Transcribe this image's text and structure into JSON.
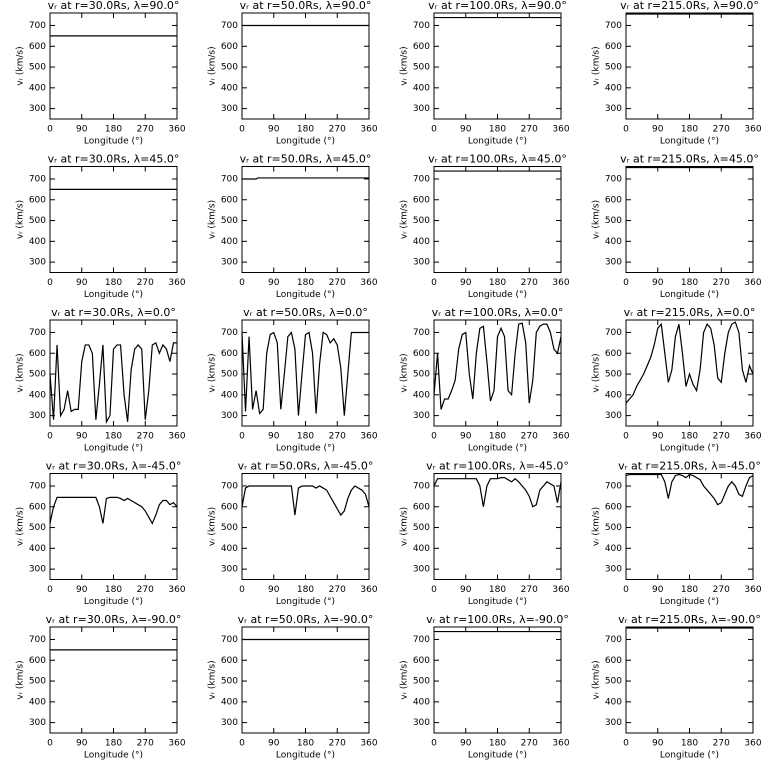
{
  "chart_data": [
    {
      "type": "line",
      "title": "vᵣ at r=30.0Rs, λ=90.0°",
      "x_label": "Longitude (°)",
      "y_label": "vᵣ (km/s)",
      "x": [
        0,
        360
      ],
      "values": [
        650,
        650
      ],
      "color": "#000000",
      "xlim": [
        0,
        360
      ],
      "xticks": [
        0,
        90,
        180,
        270,
        360
      ],
      "ylim": [
        250,
        760
      ],
      "yticks": [
        300,
        400,
        500,
        600,
        700
      ]
    },
    {
      "type": "line",
      "title": "vᵣ at r=50.0Rs, λ=90.0°",
      "x_label": "Longitude (°)",
      "y_label": "vᵣ (km/s)",
      "x": [
        0,
        360
      ],
      "values": [
        700,
        700
      ],
      "color": "#000000",
      "xlim": [
        0,
        360
      ],
      "xticks": [
        0,
        90,
        180,
        270,
        360
      ],
      "ylim": [
        250,
        760
      ],
      "yticks": [
        300,
        400,
        500,
        600,
        700
      ]
    },
    {
      "type": "line",
      "title": "vᵣ at r=100.0Rs, λ=90.0°",
      "x_label": "Longitude (°)",
      "y_label": "vᵣ (km/s)",
      "x": [
        0,
        360
      ],
      "values": [
        738,
        738
      ],
      "color": "#000000",
      "xlim": [
        0,
        360
      ],
      "xticks": [
        0,
        90,
        180,
        270,
        360
      ],
      "ylim": [
        250,
        760
      ],
      "yticks": [
        300,
        400,
        500,
        600,
        700
      ]
    },
    {
      "type": "line",
      "title": "vᵣ at r=215.0Rs, λ=90.0°",
      "x_label": "Longitude (°)",
      "y_label": "vᵣ (km/s)",
      "x": [
        0,
        360
      ],
      "values": [
        755,
        755
      ],
      "color": "#000000",
      "xlim": [
        0,
        360
      ],
      "xticks": [
        0,
        90,
        180,
        270,
        360
      ],
      "ylim": [
        250,
        760
      ],
      "yticks": [
        300,
        400,
        500,
        600,
        700
      ]
    },
    {
      "type": "line",
      "title": "vᵣ at r=30.0Rs, λ=45.0°",
      "x_label": "Longitude (°)",
      "y_label": "vᵣ (km/s)",
      "x": [
        0,
        360
      ],
      "values": [
        650,
        650
      ],
      "color": "#000000",
      "xlim": [
        0,
        360
      ],
      "xticks": [
        0,
        90,
        180,
        270,
        360
      ],
      "ylim": [
        250,
        760
      ],
      "yticks": [
        300,
        400,
        500,
        600,
        700
      ]
    },
    {
      "type": "line",
      "title": "vᵣ at r=50.0Rs, λ=45.0°",
      "x_label": "Longitude (°)",
      "y_label": "vᵣ (km/s)",
      "x": [
        0,
        40,
        45,
        360
      ],
      "values": [
        700,
        700,
        705,
        705
      ],
      "color": "#000000",
      "xlim": [
        0,
        360
      ],
      "xticks": [
        0,
        90,
        180,
        270,
        360
      ],
      "ylim": [
        250,
        760
      ],
      "yticks": [
        300,
        400,
        500,
        600,
        700
      ]
    },
    {
      "type": "line",
      "title": "vᵣ at r=100.0Rs, λ=45.0°",
      "x_label": "Longitude (°)",
      "y_label": "vᵣ (km/s)",
      "x": [
        0,
        360
      ],
      "values": [
        738,
        738
      ],
      "color": "#000000",
      "xlim": [
        0,
        360
      ],
      "xticks": [
        0,
        90,
        180,
        270,
        360
      ],
      "ylim": [
        250,
        760
      ],
      "yticks": [
        300,
        400,
        500,
        600,
        700
      ]
    },
    {
      "type": "line",
      "title": "vᵣ at r=215.0Rs, λ=45.0°",
      "x_label": "Longitude (°)",
      "y_label": "vᵣ (km/s)",
      "x": [
        0,
        360
      ],
      "values": [
        755,
        755
      ],
      "color": "#000000",
      "xlim": [
        0,
        360
      ],
      "xticks": [
        0,
        90,
        180,
        270,
        360
      ],
      "ylim": [
        250,
        760
      ],
      "yticks": [
        300,
        400,
        500,
        600,
        700
      ]
    },
    {
      "type": "line",
      "title": "vᵣ at r=30.0Rs, λ=0.0°",
      "x_label": "Longitude (°)",
      "y_label": "vᵣ (km/s)",
      "x": [
        0,
        10,
        20,
        30,
        40,
        50,
        60,
        70,
        80,
        90,
        100,
        110,
        120,
        130,
        140,
        150,
        160,
        170,
        180,
        190,
        200,
        210,
        220,
        230,
        240,
        250,
        260,
        270,
        280,
        290,
        300,
        310,
        320,
        330,
        340,
        350,
        360
      ],
      "values": [
        500,
        280,
        640,
        300,
        330,
        420,
        320,
        330,
        330,
        560,
        640,
        640,
        600,
        280,
        450,
        640,
        270,
        300,
        620,
        640,
        640,
        400,
        270,
        520,
        620,
        640,
        620,
        280,
        420,
        640,
        650,
        600,
        640,
        620,
        560,
        650,
        650
      ],
      "color": "#000000",
      "xlim": [
        0,
        360
      ],
      "xticks": [
        0,
        90,
        180,
        270,
        360
      ],
      "ylim": [
        250,
        760
      ],
      "yticks": [
        300,
        400,
        500,
        600,
        700
      ]
    },
    {
      "type": "line",
      "title": "vᵣ at r=50.0Rs, λ=0.0°",
      "x_label": "Longitude (°)",
      "y_label": "vᵣ (km/s)",
      "x": [
        0,
        10,
        20,
        30,
        40,
        50,
        60,
        70,
        80,
        90,
        100,
        110,
        120,
        130,
        140,
        150,
        160,
        170,
        180,
        190,
        200,
        210,
        220,
        230,
        240,
        250,
        260,
        270,
        280,
        290,
        300,
        310,
        320,
        330,
        340,
        350,
        360
      ],
      "values": [
        700,
        320,
        680,
        330,
        420,
        310,
        330,
        600,
        690,
        700,
        650,
        330,
        500,
        680,
        700,
        620,
        300,
        500,
        690,
        700,
        600,
        310,
        550,
        700,
        690,
        650,
        670,
        640,
        530,
        300,
        500,
        700,
        700,
        700,
        700,
        700,
        700
      ],
      "color": "#000000",
      "xlim": [
        0,
        360
      ],
      "xticks": [
        0,
        90,
        180,
        270,
        360
      ],
      "ylim": [
        250,
        760
      ],
      "yticks": [
        300,
        400,
        500,
        600,
        700
      ]
    },
    {
      "type": "line",
      "title": "vᵣ at r=100.0Rs, λ=0.0°",
      "x_label": "Longitude (°)",
      "y_label": "vᵣ (km/s)",
      "x": [
        0,
        10,
        20,
        30,
        40,
        50,
        60,
        70,
        80,
        90,
        100,
        110,
        120,
        130,
        140,
        150,
        160,
        170,
        180,
        190,
        200,
        210,
        220,
        230,
        240,
        250,
        260,
        270,
        280,
        290,
        300,
        310,
        320,
        330,
        340,
        350,
        360
      ],
      "values": [
        400,
        600,
        330,
        380,
        380,
        420,
        470,
        620,
        690,
        700,
        500,
        380,
        600,
        720,
        730,
        560,
        370,
        420,
        680,
        720,
        680,
        420,
        400,
        600,
        740,
        745,
        650,
        360,
        470,
        700,
        730,
        740,
        740,
        700,
        620,
        600,
        680
      ],
      "color": "#000000",
      "xlim": [
        0,
        360
      ],
      "xticks": [
        0,
        90,
        180,
        270,
        360
      ],
      "ylim": [
        250,
        760
      ],
      "yticks": [
        300,
        400,
        500,
        600,
        700
      ]
    },
    {
      "type": "line",
      "title": "vᵣ at r=215.0Rs, λ=0.0°",
      "x_label": "Longitude (°)",
      "y_label": "vᵣ (km/s)",
      "x": [
        0,
        10,
        20,
        30,
        40,
        50,
        60,
        70,
        80,
        90,
        100,
        110,
        120,
        130,
        140,
        150,
        160,
        170,
        180,
        190,
        200,
        210,
        220,
        230,
        240,
        250,
        260,
        270,
        280,
        290,
        300,
        310,
        320,
        330,
        340,
        350,
        360
      ],
      "values": [
        360,
        380,
        400,
        440,
        470,
        500,
        540,
        580,
        640,
        720,
        740,
        600,
        460,
        520,
        680,
        740,
        600,
        440,
        500,
        450,
        420,
        520,
        700,
        740,
        720,
        640,
        480,
        460,
        600,
        700,
        740,
        750,
        700,
        520,
        460,
        540,
        500
      ],
      "color": "#000000",
      "xlim": [
        0,
        360
      ],
      "xticks": [
        0,
        90,
        180,
        270,
        360
      ],
      "ylim": [
        250,
        760
      ],
      "yticks": [
        300,
        400,
        500,
        600,
        700
      ]
    },
    {
      "type": "line",
      "title": "vᵣ at r=30.0Rs, λ=-45.0°",
      "x_label": "Longitude (°)",
      "y_label": "vᵣ (km/s)",
      "x": [
        0,
        10,
        20,
        30,
        40,
        50,
        60,
        70,
        80,
        90,
        100,
        110,
        120,
        130,
        140,
        150,
        160,
        170,
        180,
        190,
        200,
        210,
        220,
        230,
        240,
        250,
        260,
        270,
        280,
        290,
        300,
        310,
        320,
        330,
        340,
        350,
        360
      ],
      "values": [
        520,
        600,
        645,
        645,
        645,
        645,
        645,
        645,
        645,
        645,
        645,
        645,
        645,
        645,
        600,
        520,
        640,
        645,
        645,
        645,
        640,
        630,
        640,
        630,
        620,
        610,
        600,
        580,
        550,
        520,
        560,
        610,
        630,
        630,
        610,
        620,
        600
      ],
      "color": "#000000",
      "xlim": [
        0,
        360
      ],
      "xticks": [
        0,
        90,
        180,
        270,
        360
      ],
      "ylim": [
        250,
        760
      ],
      "yticks": [
        300,
        400,
        500,
        600,
        700
      ]
    },
    {
      "type": "line",
      "title": "vᵣ at r=50.0Rs, λ=-45.0°",
      "x_label": "Longitude (°)",
      "y_label": "vᵣ (km/s)",
      "x": [
        0,
        10,
        20,
        30,
        40,
        50,
        60,
        70,
        80,
        90,
        100,
        110,
        120,
        130,
        140,
        150,
        160,
        170,
        180,
        190,
        200,
        210,
        220,
        230,
        240,
        250,
        260,
        270,
        280,
        290,
        300,
        310,
        320,
        330,
        340,
        350,
        360
      ],
      "values": [
        600,
        690,
        700,
        700,
        700,
        700,
        700,
        700,
        700,
        700,
        700,
        700,
        700,
        700,
        700,
        560,
        690,
        700,
        700,
        700,
        700,
        690,
        700,
        690,
        680,
        650,
        620,
        590,
        560,
        580,
        640,
        680,
        700,
        690,
        680,
        660,
        600
      ],
      "color": "#000000",
      "xlim": [
        0,
        360
      ],
      "xticks": [
        0,
        90,
        180,
        270,
        360
      ],
      "ylim": [
        250,
        760
      ],
      "yticks": [
        300,
        400,
        500,
        600,
        700
      ]
    },
    {
      "type": "line",
      "title": "vᵣ at r=100.0Rs, λ=-45.0°",
      "x_label": "Longitude (°)",
      "y_label": "vᵣ (km/s)",
      "x": [
        0,
        10,
        20,
        30,
        40,
        50,
        60,
        70,
        80,
        90,
        100,
        110,
        120,
        130,
        140,
        150,
        160,
        170,
        180,
        190,
        200,
        210,
        220,
        230,
        240,
        250,
        260,
        270,
        280,
        290,
        300,
        310,
        320,
        330,
        340,
        350,
        360
      ],
      "values": [
        700,
        735,
        735,
        735,
        735,
        735,
        735,
        735,
        735,
        735,
        735,
        735,
        735,
        700,
        600,
        700,
        735,
        735,
        735,
        740,
        740,
        730,
        720,
        735,
        720,
        700,
        680,
        650,
        600,
        610,
        680,
        700,
        720,
        710,
        700,
        620,
        720
      ],
      "color": "#000000",
      "xlim": [
        0,
        360
      ],
      "xticks": [
        0,
        90,
        180,
        270,
        360
      ],
      "ylim": [
        250,
        760
      ],
      "yticks": [
        300,
        400,
        500,
        600,
        700
      ]
    },
    {
      "type": "line",
      "title": "vᵣ at r=215.0Rs, λ=-45.0°",
      "x_label": "Longitude (°)",
      "y_label": "vᵣ (km/s)",
      "x": [
        0,
        10,
        20,
        30,
        40,
        50,
        60,
        70,
        80,
        90,
        100,
        110,
        120,
        130,
        140,
        150,
        160,
        170,
        180,
        190,
        200,
        210,
        220,
        230,
        240,
        250,
        260,
        270,
        280,
        290,
        300,
        310,
        320,
        330,
        340,
        350,
        360
      ],
      "values": [
        750,
        755,
        755,
        755,
        755,
        755,
        755,
        755,
        755,
        755,
        755,
        720,
        640,
        720,
        750,
        755,
        750,
        740,
        755,
        750,
        740,
        730,
        700,
        680,
        660,
        640,
        610,
        620,
        660,
        700,
        720,
        700,
        660,
        650,
        700,
        740,
        750
      ],
      "color": "#000000",
      "xlim": [
        0,
        360
      ],
      "xticks": [
        0,
        90,
        180,
        270,
        360
      ],
      "ylim": [
        250,
        760
      ],
      "yticks": [
        300,
        400,
        500,
        600,
        700
      ]
    },
    {
      "type": "line",
      "title": "vᵣ at r=30.0Rs, λ=-90.0°",
      "x_label": "Longitude (°)",
      "y_label": "vᵣ (km/s)",
      "x": [
        0,
        360
      ],
      "values": [
        650,
        650
      ],
      "color": "#000000",
      "xlim": [
        0,
        360
      ],
      "xticks": [
        0,
        90,
        180,
        270,
        360
      ],
      "ylim": [
        250,
        760
      ],
      "yticks": [
        300,
        400,
        500,
        600,
        700
      ]
    },
    {
      "type": "line",
      "title": "vᵣ at r=50.0Rs, λ=-90.0°",
      "x_label": "Longitude (°)",
      "y_label": "vᵣ (km/s)",
      "x": [
        0,
        360
      ],
      "values": [
        700,
        700
      ],
      "color": "#000000",
      "xlim": [
        0,
        360
      ],
      "xticks": [
        0,
        90,
        180,
        270,
        360
      ],
      "ylim": [
        250,
        760
      ],
      "yticks": [
        300,
        400,
        500,
        600,
        700
      ]
    },
    {
      "type": "line",
      "title": "vᵣ at r=100.0Rs, λ=-90.0°",
      "x_label": "Longitude (°)",
      "y_label": "vᵣ (km/s)",
      "x": [
        0,
        360
      ],
      "values": [
        738,
        738
      ],
      "color": "#000000",
      "xlim": [
        0,
        360
      ],
      "xticks": [
        0,
        90,
        180,
        270,
        360
      ],
      "ylim": [
        250,
        760
      ],
      "yticks": [
        300,
        400,
        500,
        600,
        700
      ]
    },
    {
      "type": "line",
      "title": "vᵣ at r=215.0Rs, λ=-90.0°",
      "x_label": "Longitude (°)",
      "y_label": "vᵣ (km/s)",
      "x": [
        0,
        360
      ],
      "values": [
        755,
        755
      ],
      "color": "#000000",
      "xlim": [
        0,
        360
      ],
      "xticks": [
        0,
        90,
        180,
        270,
        360
      ],
      "ylim": [
        250,
        760
      ],
      "yticks": [
        300,
        400,
        500,
        600,
        700
      ]
    }
  ]
}
